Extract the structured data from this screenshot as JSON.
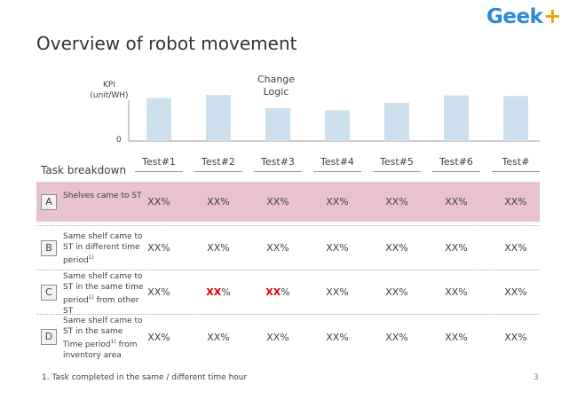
{
  "logo": {
    "text": "Geek",
    "plus": "+"
  },
  "title": "Overview of robot movement",
  "chart_data": {
    "type": "bar",
    "categories": [
      "Test#1",
      "Test#2",
      "Test#3",
      "Test#4",
      "Test#5",
      "Test#6",
      "Test#"
    ],
    "values": [
      0.82,
      0.88,
      0.63,
      0.59,
      0.73,
      0.87,
      0.86
    ],
    "ylabel": "KPI\n(unit/WH)",
    "y_tick_labels": [
      "0"
    ],
    "annotation": "Change\nLogic",
    "bar_color": "#cde0ee"
  },
  "table": {
    "header_label": "Task breakdown",
    "columns": [
      "Test#1",
      "Test#2",
      "Test#3",
      "Test#4",
      "Test#5",
      "Test#6",
      "Test#"
    ],
    "rows": [
      {
        "letter": "A",
        "label": "Shelves came to ST",
        "highlight": "#e8c3cf",
        "cells": [
          {
            "lead": "",
            "red": "",
            "value": "XX%"
          },
          {
            "lead": "",
            "red": "",
            "value": "XX%"
          },
          {
            "lead": "",
            "red": "",
            "value": "XX%"
          },
          {
            "lead": "",
            "red": "",
            "value": "XX%"
          },
          {
            "lead": "",
            "red": "",
            "value": "XX%"
          },
          {
            "lead": "",
            "red": "",
            "value": "XX%"
          },
          {
            "lead": "",
            "red": "",
            "value": "XX%"
          }
        ]
      },
      {
        "letter": "B",
        "label": "Same shelf came to ST in different time period",
        "sup": "1)",
        "label_after": "",
        "cells": [
          {
            "lead": "",
            "red": "",
            "value": "XX%"
          },
          {
            "lead": "",
            "red": "",
            "value": "XX%"
          },
          {
            "lead": "",
            "red": "",
            "value": "XX%"
          },
          {
            "lead": "",
            "red": "",
            "value": "XX%"
          },
          {
            "lead": "",
            "red": "",
            "value": "XX%"
          },
          {
            "lead": "",
            "red": "",
            "value": "XX%"
          },
          {
            "lead": "",
            "red": "",
            "value": "XX%"
          }
        ]
      },
      {
        "letter": "C",
        "label": "Same shelf came to ST in the same time period",
        "sup": "1)",
        "label_after": " from other ST",
        "cells": [
          {
            "lead": "",
            "red": "",
            "value": "XX%"
          },
          {
            "lead": "",
            "red": "XX",
            "value": "%"
          },
          {
            "lead": "",
            "red": "XX",
            "value": "%"
          },
          {
            "lead": "",
            "red": "",
            "value": "XX%"
          },
          {
            "lead": "",
            "red": "",
            "value": "XX%"
          },
          {
            "lead": "",
            "red": "",
            "value": "XX%"
          },
          {
            "lead": "",
            "red": "",
            "value": "XX%"
          }
        ]
      },
      {
        "letter": "D",
        "label": "Same shelf came to ST in the same Time period",
        "sup": "1)",
        "label_after": " from inventory area",
        "cells": [
          {
            "lead": "",
            "red": "",
            "value": "XX%"
          },
          {
            "lead": "",
            "red": "",
            "value": "XX%"
          },
          {
            "lead": "",
            "red": "",
            "value": "XX%"
          },
          {
            "lead": "",
            "red": "",
            "value": "XX%"
          },
          {
            "lead": "",
            "red": "",
            "value": "XX%"
          },
          {
            "lead": "",
            "red": "",
            "value": "XX%"
          },
          {
            "lead": "",
            "red": "",
            "value": "XX%"
          }
        ]
      }
    ]
  },
  "footnote": "1. Task completed in the same / different time hour",
  "page_number": "3"
}
